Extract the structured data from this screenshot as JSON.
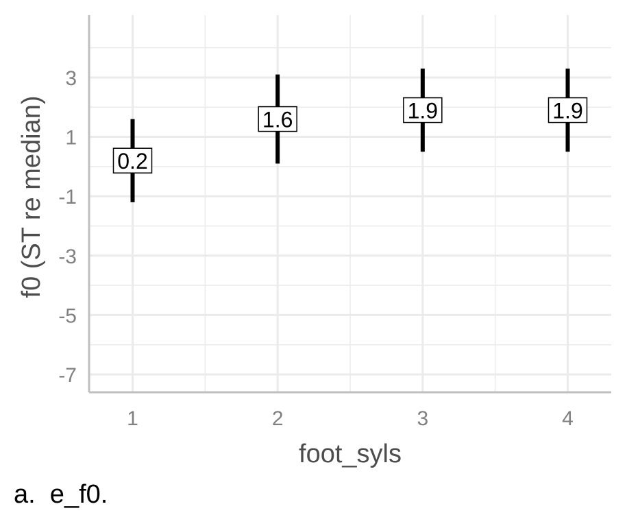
{
  "chart_data": {
    "type": "errorbar",
    "x": [
      1,
      2,
      3,
      4
    ],
    "estimate": [
      0.2,
      1.6,
      1.9,
      1.9
    ],
    "lower": [
      -1.2,
      0.1,
      0.5,
      0.5
    ],
    "upper": [
      1.6,
      3.1,
      3.3,
      3.3
    ],
    "data_labels": [
      "0.2",
      "1.6",
      "1.9",
      "1.9"
    ],
    "xlabel": "foot_syls",
    "ylabel": "f0 (ST re median)",
    "x_ticks": [
      "1",
      "2",
      "3",
      "4"
    ],
    "y_ticks": [
      "3",
      "1",
      "-1",
      "-3",
      "-5",
      "-7"
    ],
    "xlim": [
      0.7,
      4.3
    ],
    "ylim": [
      -7.6,
      5.1
    ],
    "grid": true,
    "colors": {
      "bar": "#000000",
      "grid": "#ebebeb",
      "axis": "#bfbfbf",
      "tick_text": "#808080",
      "title_text": "#4d4d4d"
    }
  },
  "caption": "a.  e_f0."
}
